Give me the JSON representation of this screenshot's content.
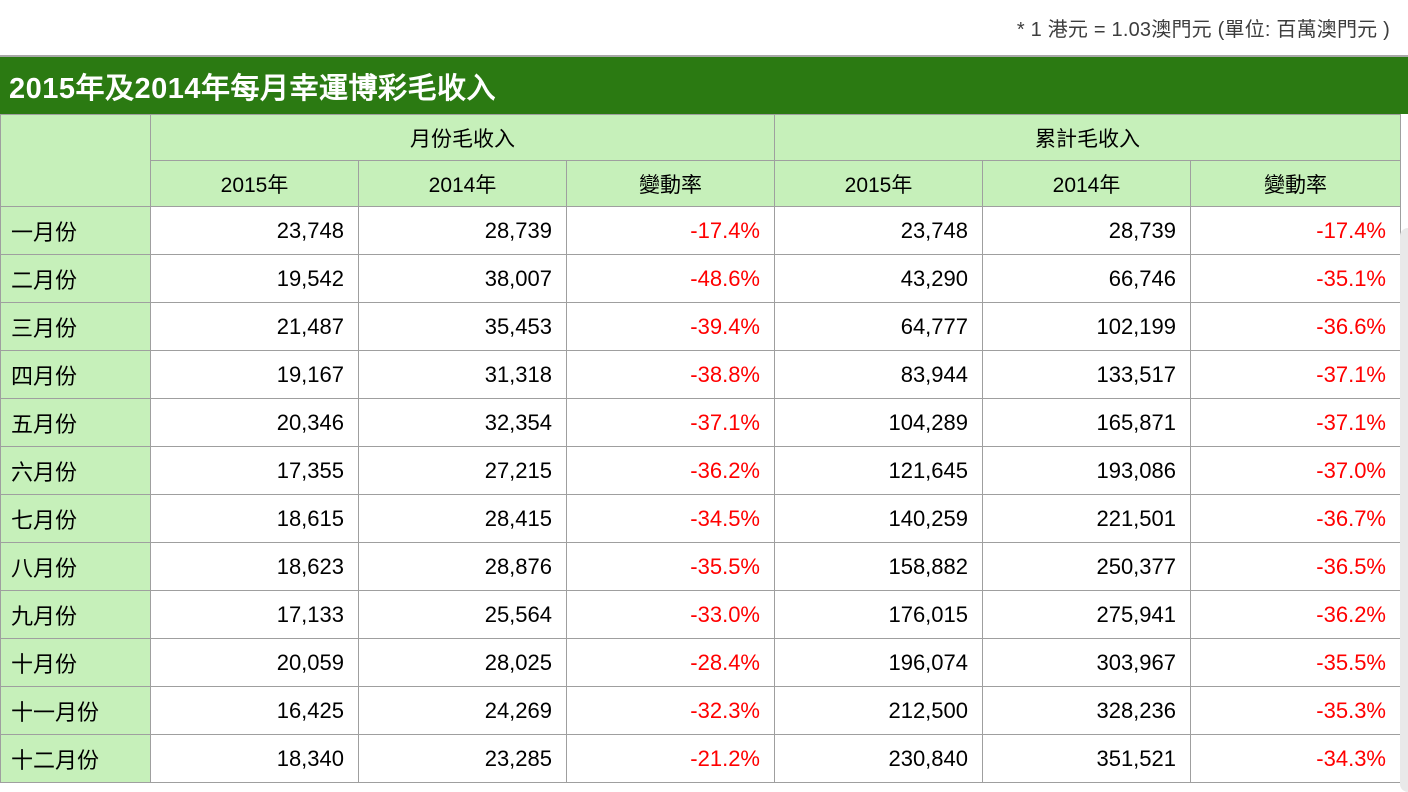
{
  "note": "* 1 港元 = 1.03澳門元 (單位: 百萬澳門元  )",
  "title": "2015年及2014年每月幸運博彩毛收入",
  "colors": {
    "title_bar_green": "#2B7A12",
    "header_light_green": "#C6F0BA",
    "border_gray": "#9f9f9f",
    "negative_red": "#FF0000"
  },
  "table": {
    "group_headers": {
      "monthly": "月份毛收入",
      "cumulative": "累計毛收入"
    },
    "column_headers": {
      "y2015": "2015年",
      "y2014": "2014年",
      "change": "變動率"
    },
    "rows": [
      {
        "month": "一月份",
        "m2015": "23,748",
        "m2014": "28,739",
        "mchg": "-17.4%",
        "c2015": "23,748",
        "c2014": "28,739",
        "cchg": "-17.4%"
      },
      {
        "month": "二月份",
        "m2015": "19,542",
        "m2014": "38,007",
        "mchg": "-48.6%",
        "c2015": "43,290",
        "c2014": "66,746",
        "cchg": "-35.1%"
      },
      {
        "month": "三月份",
        "m2015": "21,487",
        "m2014": "35,453",
        "mchg": "-39.4%",
        "c2015": "64,777",
        "c2014": "102,199",
        "cchg": "-36.6%"
      },
      {
        "month": "四月份",
        "m2015": "19,167",
        "m2014": "31,318",
        "mchg": "-38.8%",
        "c2015": "83,944",
        "c2014": "133,517",
        "cchg": "-37.1%"
      },
      {
        "month": "五月份",
        "m2015": "20,346",
        "m2014": "32,354",
        "mchg": "-37.1%",
        "c2015": "104,289",
        "c2014": "165,871",
        "cchg": "-37.1%"
      },
      {
        "month": "六月份",
        "m2015": "17,355",
        "m2014": "27,215",
        "mchg": "-36.2%",
        "c2015": "121,645",
        "c2014": "193,086",
        "cchg": "-37.0%"
      },
      {
        "month": "七月份",
        "m2015": "18,615",
        "m2014": "28,415",
        "mchg": "-34.5%",
        "c2015": "140,259",
        "c2014": "221,501",
        "cchg": "-36.7%"
      },
      {
        "month": "八月份",
        "m2015": "18,623",
        "m2014": "28,876",
        "mchg": "-35.5%",
        "c2015": "158,882",
        "c2014": "250,377",
        "cchg": "-36.5%"
      },
      {
        "month": "九月份",
        "m2015": "17,133",
        "m2014": "25,564",
        "mchg": "-33.0%",
        "c2015": "176,015",
        "c2014": "275,941",
        "cchg": "-36.2%"
      },
      {
        "month": "十月份",
        "m2015": "20,059",
        "m2014": "28,025",
        "mchg": "-28.4%",
        "c2015": "196,074",
        "c2014": "303,967",
        "cchg": "-35.5%"
      },
      {
        "month": "十一月份",
        "m2015": "16,425",
        "m2014": "24,269",
        "mchg": "-32.3%",
        "c2015": "212,500",
        "c2014": "328,236",
        "cchg": "-35.3%"
      },
      {
        "month": "十二月份",
        "m2015": "18,340",
        "m2014": "23,285",
        "mchg": "-21.2%",
        "c2015": "230,840",
        "c2014": "351,521",
        "cchg": "-34.3%"
      }
    ]
  },
  "chart_data": {
    "type": "table",
    "title": "2015年及2014年每月幸運博彩毛收入",
    "note": "* 1 港元 = 1.03澳門元 (單位: 百萬澳門元 )",
    "unit": "百萬澳門元",
    "column_groups": [
      "月份毛收入",
      "累計毛收入"
    ],
    "columns": [
      "月份",
      "月份毛收入 2015年",
      "月份毛收入 2014年",
      "月份毛收入 變動率",
      "累計毛收入 2015年",
      "累計毛收入 2014年",
      "累計毛收入 變動率"
    ],
    "rows": [
      [
        "一月份",
        23748,
        28739,
        "-17.4%",
        23748,
        28739,
        "-17.4%"
      ],
      [
        "二月份",
        19542,
        38007,
        "-48.6%",
        43290,
        66746,
        "-35.1%"
      ],
      [
        "三月份",
        21487,
        35453,
        "-39.4%",
        64777,
        102199,
        "-36.6%"
      ],
      [
        "四月份",
        19167,
        31318,
        "-38.8%",
        83944,
        133517,
        "-37.1%"
      ],
      [
        "五月份",
        20346,
        32354,
        "-37.1%",
        104289,
        165871,
        "-37.1%"
      ],
      [
        "六月份",
        17355,
        27215,
        "-36.2%",
        121645,
        193086,
        "-37.0%"
      ],
      [
        "七月份",
        18615,
        28415,
        "-34.5%",
        140259,
        221501,
        "-36.7%"
      ],
      [
        "八月份",
        18623,
        28876,
        "-35.5%",
        158882,
        250377,
        "-36.5%"
      ],
      [
        "九月份",
        17133,
        25564,
        "-33.0%",
        176015,
        275941,
        "-36.2%"
      ],
      [
        "十月份",
        20059,
        28025,
        "-28.4%",
        196074,
        303967,
        "-35.5%"
      ],
      [
        "十一月份",
        16425,
        24269,
        "-32.3%",
        212500,
        328236,
        "-35.3%"
      ],
      [
        "十二月份",
        18340,
        23285,
        "-21.2%",
        230840,
        351521,
        "-34.3%"
      ]
    ]
  }
}
